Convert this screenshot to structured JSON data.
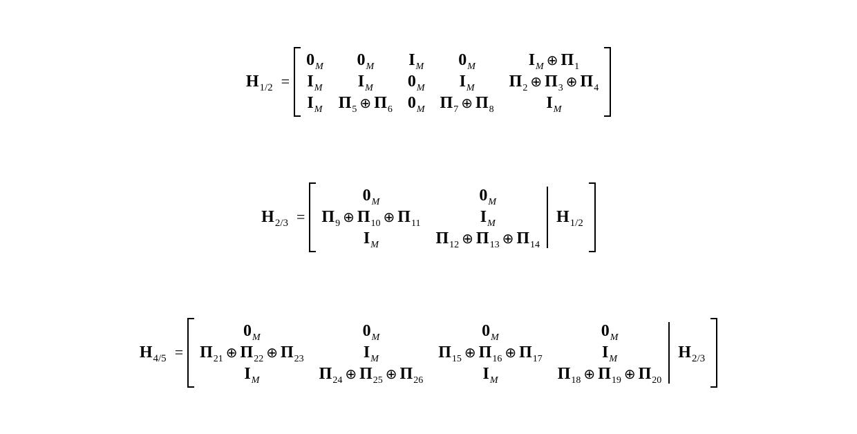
{
  "meta": {
    "background_color": "#ffffff",
    "text_color": "#000000",
    "font_family": "Times New Roman",
    "base_fontsize": 24,
    "subscript_fontsize": 14,
    "oplus_glyph": "⊕"
  },
  "symbols": {
    "H": "H",
    "zero": "0",
    "I": "I",
    "Pi": "Π",
    "M": "M",
    "equals": "="
  },
  "equations": [
    {
      "label": {
        "base": "H",
        "sub": "1/2"
      },
      "blocks": [
        {
          "cols": 5,
          "rows": [
            [
              {
                "type": "zeroM"
              },
              {
                "type": "zeroM"
              },
              {
                "type": "IM"
              },
              {
                "type": "zeroM"
              },
              {
                "type": "sum",
                "terms": [
                  {
                    "t": "IM"
                  },
                  {
                    "t": "Pi",
                    "n": 1
                  }
                ]
              }
            ],
            [
              {
                "type": "IM"
              },
              {
                "type": "IM"
              },
              {
                "type": "zeroM"
              },
              {
                "type": "IM"
              },
              {
                "type": "sum",
                "terms": [
                  {
                    "t": "Pi",
                    "n": 2
                  },
                  {
                    "t": "Pi",
                    "n": 3
                  },
                  {
                    "t": "Pi",
                    "n": 4
                  }
                ]
              }
            ],
            [
              {
                "type": "IM"
              },
              {
                "type": "sum",
                "terms": [
                  {
                    "t": "Pi",
                    "n": 5
                  },
                  {
                    "t": "Pi",
                    "n": 6
                  }
                ]
              },
              {
                "type": "zeroM"
              },
              {
                "type": "sum",
                "terms": [
                  {
                    "t": "Pi",
                    "n": 7
                  },
                  {
                    "t": "Pi",
                    "n": 8
                  }
                ]
              },
              {
                "type": "IM"
              }
            ]
          ]
        }
      ],
      "after": null
    },
    {
      "label": {
        "base": "H",
        "sub": "2/3"
      },
      "blocks": [
        {
          "cols": 2,
          "rows": [
            [
              {
                "type": "zeroM"
              },
              {
                "type": "zeroM"
              }
            ],
            [
              {
                "type": "sum",
                "terms": [
                  {
                    "t": "Pi",
                    "n": 9
                  },
                  {
                    "t": "Pi",
                    "n": 10
                  },
                  {
                    "t": "Pi",
                    "n": 11
                  }
                ]
              },
              {
                "type": "IM"
              }
            ],
            [
              {
                "type": "IM"
              },
              {
                "type": "sum",
                "terms": [
                  {
                    "t": "Pi",
                    "n": 12
                  },
                  {
                    "t": "Pi",
                    "n": 13
                  },
                  {
                    "t": "Pi",
                    "n": 14
                  }
                ]
              }
            ]
          ]
        }
      ],
      "after": {
        "base": "H",
        "sub": "1/2"
      }
    },
    {
      "label": {
        "base": "H",
        "sub": "4/5"
      },
      "blocks": [
        {
          "cols": 4,
          "rows": [
            [
              {
                "type": "zeroM"
              },
              {
                "type": "zeroM"
              },
              {
                "type": "zeroM"
              },
              {
                "type": "zeroM"
              }
            ],
            [
              {
                "type": "sum",
                "terms": [
                  {
                    "t": "Pi",
                    "n": 21
                  },
                  {
                    "t": "Pi",
                    "n": 22
                  },
                  {
                    "t": "Pi",
                    "n": 23
                  }
                ]
              },
              {
                "type": "IM"
              },
              {
                "type": "sum",
                "terms": [
                  {
                    "t": "Pi",
                    "n": 15
                  },
                  {
                    "t": "Pi",
                    "n": 16
                  },
                  {
                    "t": "Pi",
                    "n": 17
                  }
                ]
              },
              {
                "type": "IM"
              }
            ],
            [
              {
                "type": "IM"
              },
              {
                "type": "sum",
                "terms": [
                  {
                    "t": "Pi",
                    "n": 24
                  },
                  {
                    "t": "Pi",
                    "n": 25
                  },
                  {
                    "t": "Pi",
                    "n": 26
                  }
                ]
              },
              {
                "type": "IM"
              },
              {
                "type": "sum",
                "terms": [
                  {
                    "t": "Pi",
                    "n": 18
                  },
                  {
                    "t": "Pi",
                    "n": 19
                  },
                  {
                    "t": "Pi",
                    "n": 20
                  }
                ]
              }
            ]
          ]
        }
      ],
      "after": {
        "base": "H",
        "sub": "2/3"
      }
    }
  ]
}
